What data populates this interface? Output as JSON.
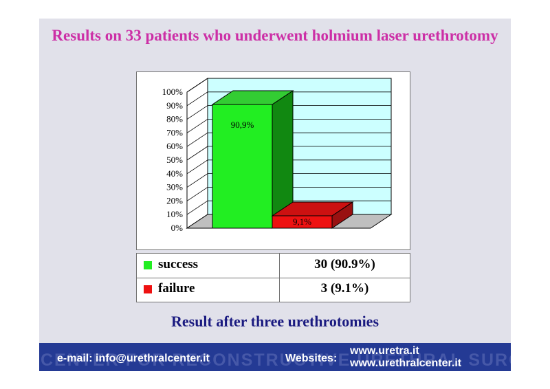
{
  "slide": {
    "title": "Results on 33 patients who underwent holmium laser urethrotomy",
    "subtitle": "Result after three urethrotomies"
  },
  "chart_data": {
    "type": "bar",
    "categories": [
      "success",
      "failure"
    ],
    "values": [
      90.9,
      9.1
    ],
    "data_labels": [
      "90,9%",
      "9,1%"
    ],
    "colors": [
      "#22ee22",
      "#ee1111"
    ],
    "ylim": [
      0,
      100
    ],
    "yticks": [
      "0%",
      "10%",
      "20%",
      "30%",
      "40%",
      "50%",
      "60%",
      "70%",
      "80%",
      "90%",
      "100%"
    ],
    "grid": true,
    "style": "3d"
  },
  "legend_table": {
    "rows": [
      {
        "label": "success",
        "value": "30 (90.9%)",
        "color": "#22ee22"
      },
      {
        "label": "failure",
        "value": "3 (9.1%)",
        "color": "#ee1111"
      }
    ]
  },
  "footer": {
    "email": "e-mail: info@urethralcenter.it",
    "websites_label": "Websites:",
    "website1": "www.uretra.it",
    "website2": "www.urethralcenter.it",
    "watermark": "CENTER FOR RECONSTRUCTIVE URETHRAL SURGERY"
  }
}
